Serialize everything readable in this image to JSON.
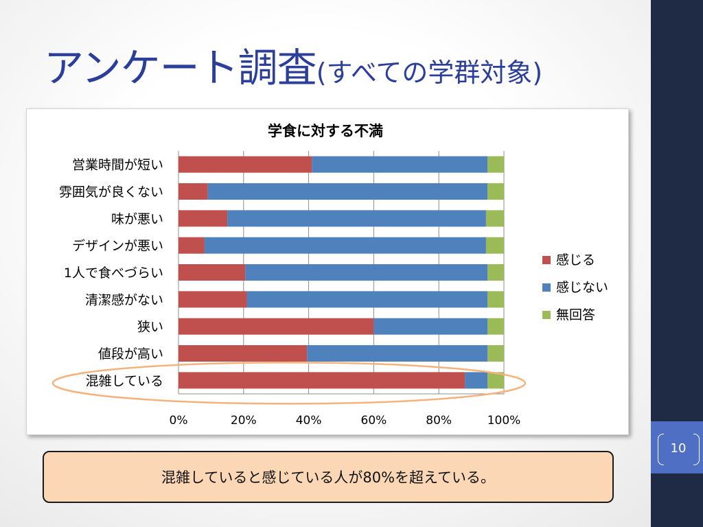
{
  "slide": {
    "title_main": "アンケート調査",
    "title_sub": "(すべての学群対象)",
    "page_number": "10",
    "callout_text": "混雑していると感じている人が80%を超えている。"
  },
  "colors": {
    "title": "#2a3e9a",
    "sidebar": "#1f2a44",
    "page_tab": "#4f6fc4",
    "callout_bg": "#fbd7b6",
    "highlight_ellipse": "#f5b27a"
  },
  "chart_data": {
    "type": "bar",
    "orientation": "horizontal",
    "stacked": "percent",
    "title": "学食に対する不満",
    "categories": [
      "営業時間が短い",
      "雰囲気が良くない",
      "味が悪い",
      "デザインが悪い",
      "1人で食べづらい",
      "清潔感がない",
      "狭い",
      "値段が高い",
      "混雑している"
    ],
    "series": [
      {
        "name": "感じる",
        "color": "#c0504d",
        "values": [
          41,
          9,
          15,
          8,
          20.5,
          21,
          60,
          39.5,
          88
        ]
      },
      {
        "name": "感じない",
        "color": "#4f81bd",
        "values": [
          54,
          86,
          79.5,
          86.5,
          74.5,
          74,
          35,
          55.5,
          7
        ]
      },
      {
        "name": "無回答",
        "color": "#9bbb59",
        "values": [
          5,
          5,
          5.5,
          5.5,
          5,
          5,
          5,
          5,
          5
        ]
      }
    ],
    "xlim": [
      0,
      100
    ],
    "xticks": [
      "0%",
      "20%",
      "40%",
      "60%",
      "80%",
      "100%"
    ],
    "grid": true,
    "legend_position": "right",
    "highlighted_category": "混雑している"
  }
}
